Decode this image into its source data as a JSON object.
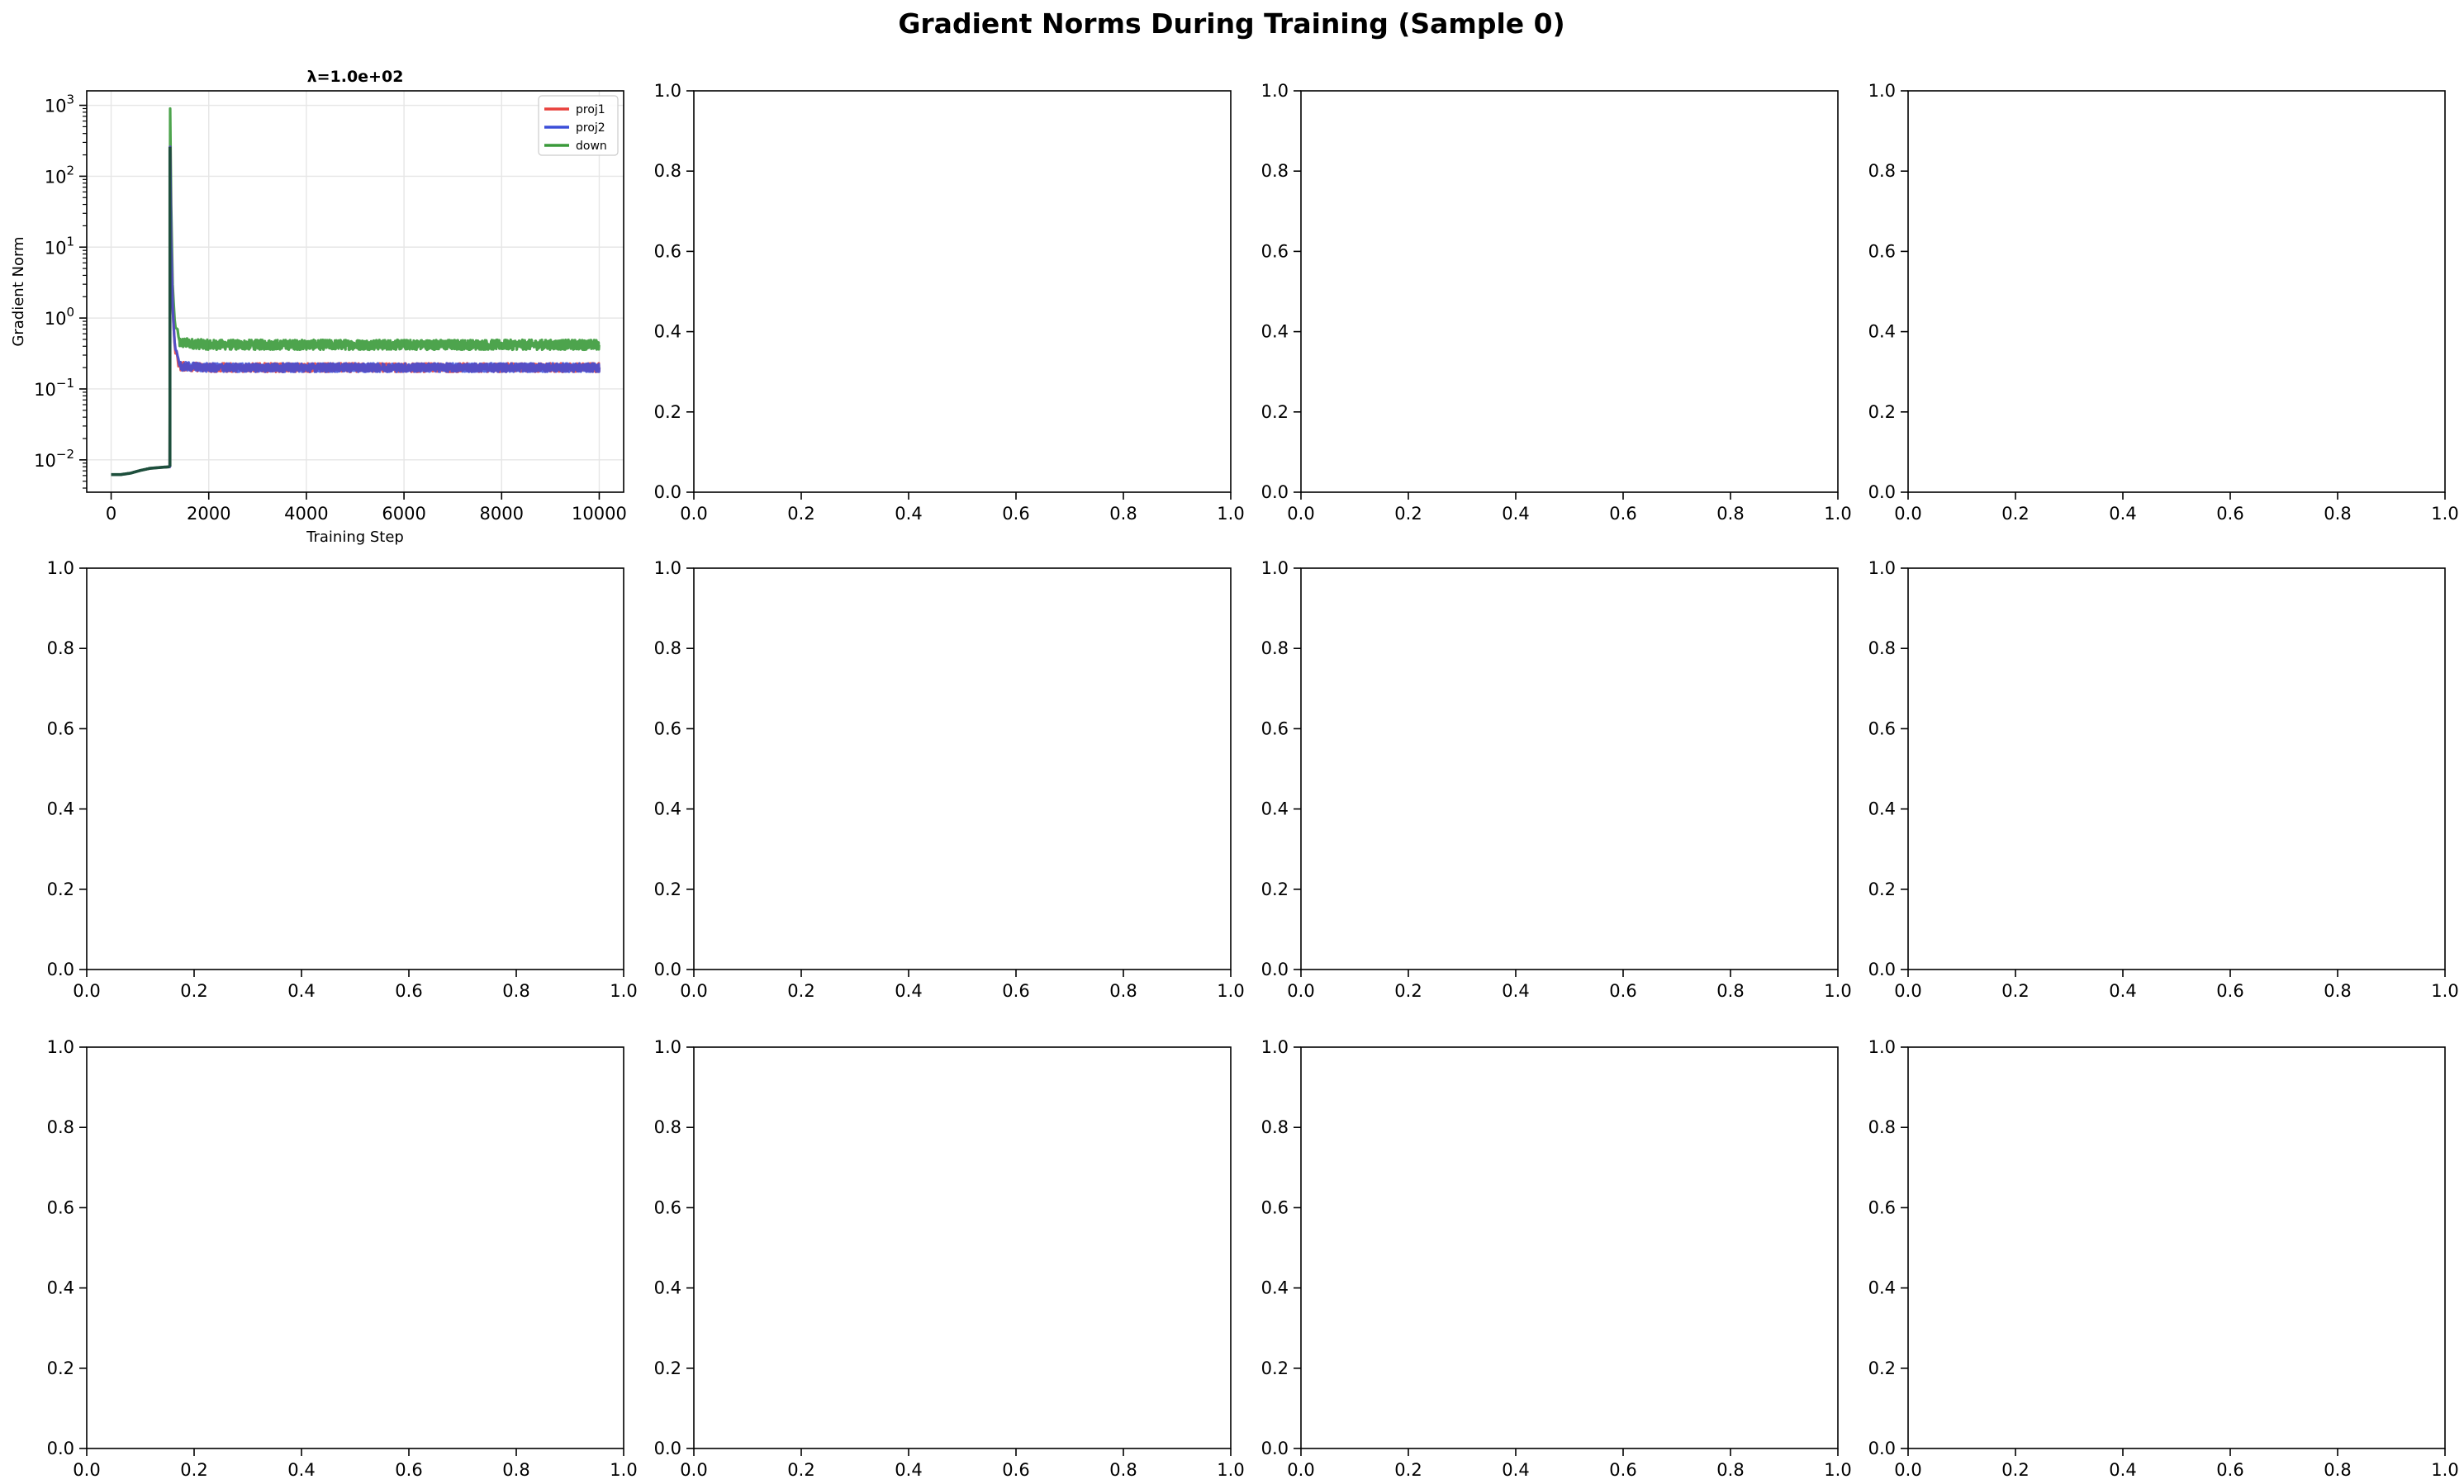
{
  "figure": {
    "title": "Gradient Norms During Training (Sample 0)"
  },
  "chart_data": [
    {
      "type": "line",
      "title": "λ=1.0e+02",
      "xlabel": "Training Step",
      "ylabel": "Gradient Norm",
      "xlim": [
        -500,
        10500
      ],
      "ylim": [
        0.0035,
        1600
      ],
      "yscale": "log",
      "grid": true,
      "legend": "top-right",
      "xticks": [
        0,
        2000,
        4000,
        6000,
        8000,
        10000
      ],
      "yticks": [
        0.01,
        0.1,
        1,
        10,
        100,
        1000
      ],
      "ytick_labels": [
        {
          "base": "10",
          "exp": "−2"
        },
        {
          "base": "10",
          "exp": "−1"
        },
        {
          "base": "10",
          "exp": "0"
        },
        {
          "base": "10",
          "exp": "1"
        },
        {
          "base": "10",
          "exp": "2"
        },
        {
          "base": "10",
          "exp": "3"
        }
      ],
      "series": [
        {
          "name": "proj1",
          "color": "#e8413c",
          "noise": 0.06,
          "x": [
            0,
            200,
            400,
            600,
            800,
            1000,
            1200,
            1210,
            1230,
            1260,
            1300,
            1400,
            2000,
            4000,
            6000,
            8000,
            10000
          ],
          "y": [
            0.0062,
            0.0062,
            0.0065,
            0.0071,
            0.0076,
            0.0078,
            0.008,
            260,
            12,
            1.5,
            0.4,
            0.21,
            0.2,
            0.2,
            0.2,
            0.2,
            0.2
          ]
        },
        {
          "name": "proj2",
          "color": "#3b4ed8",
          "noise": 0.06,
          "x": [
            0,
            200,
            400,
            600,
            800,
            1000,
            1200,
            1210,
            1230,
            1260,
            1300,
            1400,
            2000,
            4000,
            6000,
            8000,
            10000
          ],
          "y": [
            0.0062,
            0.0062,
            0.0065,
            0.0071,
            0.0076,
            0.0078,
            0.008,
            260,
            12,
            1.5,
            0.4,
            0.21,
            0.2,
            0.2,
            0.2,
            0.2,
            0.2
          ]
        },
        {
          "name": "down",
          "color": "#3a9a3a",
          "noise": 0.07,
          "x": [
            0,
            200,
            400,
            600,
            800,
            1000,
            1200,
            1210,
            1230,
            1260,
            1300,
            1400,
            2000,
            4000,
            6000,
            8000,
            10000
          ],
          "y": [
            0.0062,
            0.0062,
            0.0065,
            0.0071,
            0.0076,
            0.0078,
            0.008,
            900,
            40,
            3,
            0.9,
            0.45,
            0.42,
            0.42,
            0.42,
            0.42,
            0.42
          ]
        }
      ]
    }
  ],
  "empty_axes": {
    "count": 11,
    "xlim": [
      0,
      1
    ],
    "ylim": [
      0,
      1
    ],
    "tick_labels": [
      "0.0",
      "0.2",
      "0.4",
      "0.6",
      "0.8",
      "1.0"
    ]
  }
}
